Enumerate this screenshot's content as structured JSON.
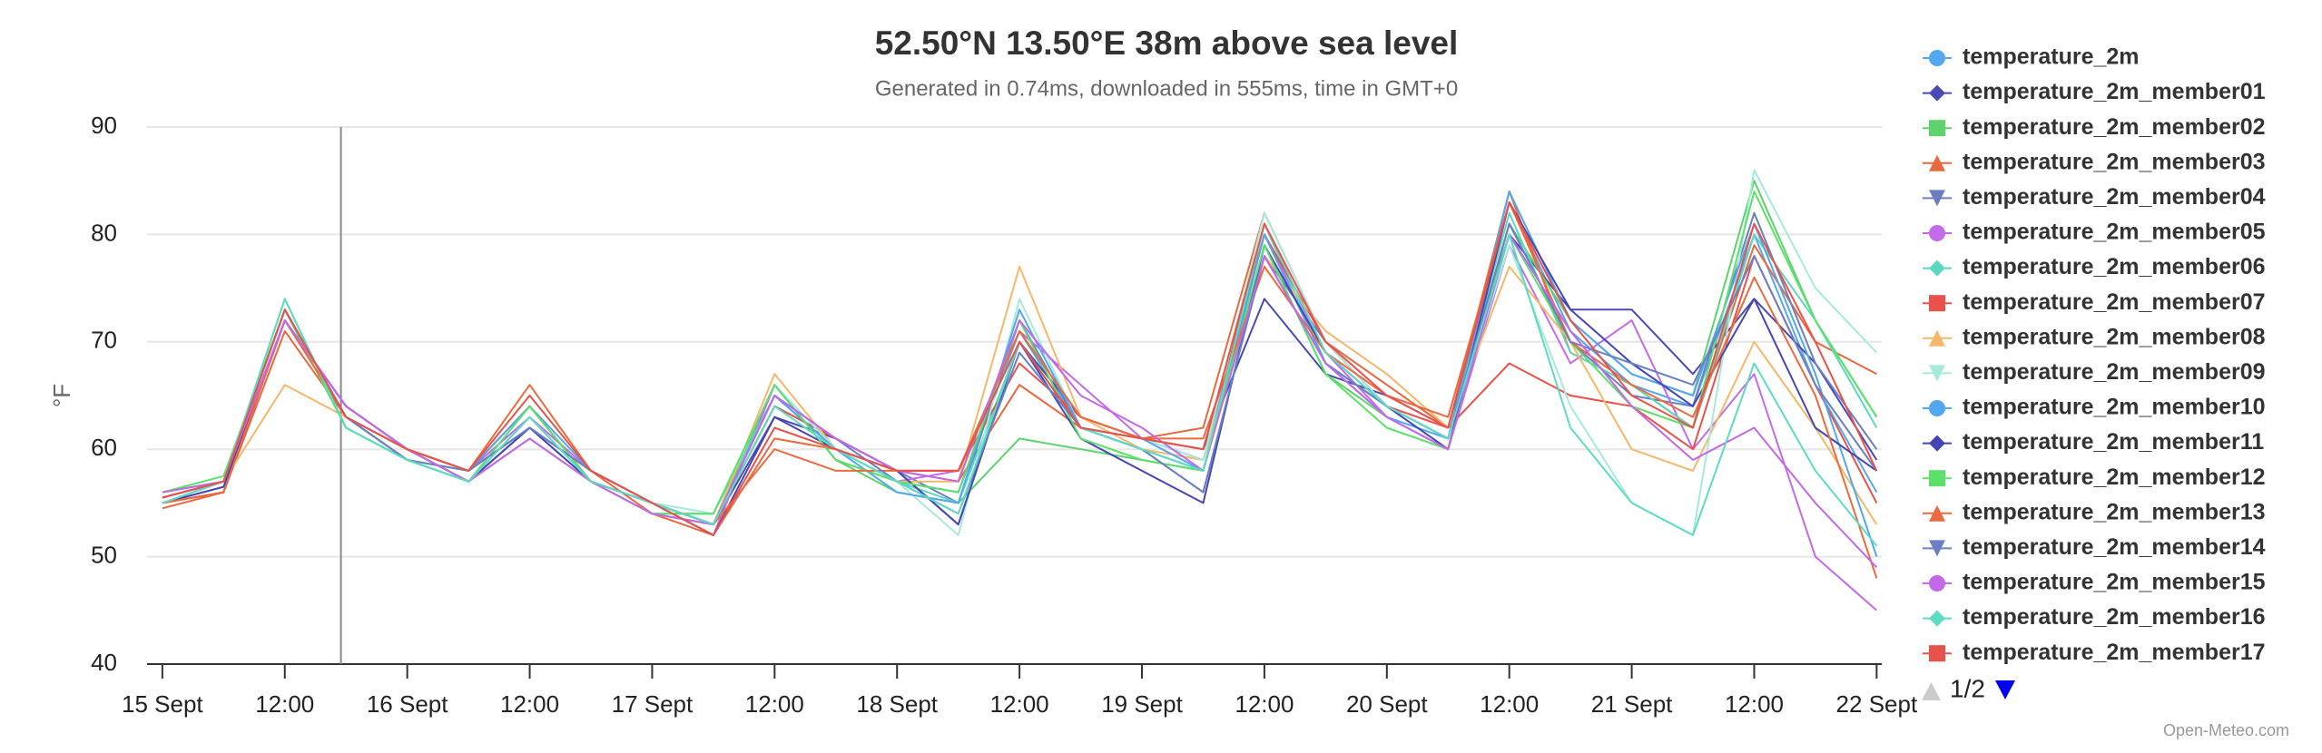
{
  "chart_data": {
    "type": "line",
    "title": "52.50°N 13.50°E 38m above sea level",
    "subtitle": "Generated in 0.74ms, downloaded in 555ms, time in GMT+0",
    "y_axis_label": "°F",
    "credit": "Open-Meteo.com",
    "legend_page": "1/2",
    "plot_line_x": 17.5,
    "grid": true,
    "xlim": [
      -1.5,
      168.5
    ],
    "ylim": [
      40,
      90
    ],
    "yticks": [
      40,
      50,
      60,
      70,
      80,
      90
    ],
    "xticks": [
      {
        "value": 0,
        "label": "15 Sept"
      },
      {
        "value": 12,
        "label": "12:00"
      },
      {
        "value": 24,
        "label": "16 Sept"
      },
      {
        "value": 36,
        "label": "12:00"
      },
      {
        "value": 48,
        "label": "17 Sept"
      },
      {
        "value": 60,
        "label": "12:00"
      },
      {
        "value": 72,
        "label": "18 Sept"
      },
      {
        "value": 84,
        "label": "12:00"
      },
      {
        "value": 96,
        "label": "19 Sept"
      },
      {
        "value": 108,
        "label": "12:00"
      },
      {
        "value": 120,
        "label": "20 Sept"
      },
      {
        "value": 132,
        "label": "12:00"
      },
      {
        "value": 144,
        "label": "21 Sept"
      },
      {
        "value": 156,
        "label": "12:00"
      },
      {
        "value": 168,
        "label": "22 Sept"
      }
    ],
    "x": [
      0,
      6,
      12,
      18,
      24,
      30,
      36,
      42,
      48,
      54,
      60,
      66,
      72,
      78,
      84,
      90,
      96,
      102,
      108,
      114,
      120,
      126,
      132,
      138,
      144,
      150,
      156,
      162,
      168
    ],
    "series": [
      {
        "name": "temperature_2m",
        "color": "#55a8ef",
        "values": [
          55.5,
          57,
          73,
          63,
          59,
          57,
          63,
          57,
          54,
          53,
          65,
          60,
          57,
          56,
          71,
          62,
          60,
          58,
          80,
          68,
          64,
          61,
          83,
          71,
          66,
          64,
          80,
          66,
          56
        ]
      },
      {
        "name": "temperature_2m_member01",
        "color": "#4a4ab3",
        "values": [
          55,
          56,
          72,
          64,
          60,
          58,
          62,
          58,
          55,
          53,
          63,
          61,
          58,
          53,
          70,
          63,
          61,
          60,
          74,
          67,
          65,
          62,
          80,
          73,
          73,
          67,
          74,
          68,
          59
        ]
      },
      {
        "name": "temperature_2m_member02",
        "color": "#5ed36b",
        "values": [
          56,
          57,
          74,
          62,
          59,
          58,
          64,
          57,
          54,
          53,
          66,
          59,
          56,
          55,
          61,
          60,
          59,
          58,
          79,
          67,
          63,
          60,
          81,
          72,
          67,
          65,
          85,
          72,
          63
        ]
      },
      {
        "name": "temperature_2m_member03",
        "color": "#e8683f",
        "values": [
          54.5,
          56,
          71,
          63,
          60,
          57,
          62,
          58,
          54,
          52,
          61,
          60,
          58,
          57,
          66,
          62,
          61,
          62,
          82,
          70,
          66,
          62,
          84,
          69,
          66,
          62,
          79,
          70,
          67
        ]
      },
      {
        "name": "temperature_2m_member04",
        "color": "#6b7fc0",
        "values": [
          55,
          57,
          73,
          63,
          59,
          57,
          61,
          57,
          55,
          53,
          64,
          61,
          58,
          55,
          72,
          62,
          60,
          56,
          78,
          70,
          64,
          61,
          81,
          70,
          65,
          64,
          82,
          68,
          60
        ]
      },
      {
        "name": "temperature_2m_member05",
        "color": "#c36be8",
        "values": [
          55.5,
          57,
          72,
          64,
          60,
          58,
          63,
          58,
          55,
          52,
          66,
          59,
          57,
          58,
          71,
          66,
          61,
          59,
          80,
          69,
          63,
          60,
          79,
          68,
          72,
          60,
          67,
          50,
          45
        ]
      },
      {
        "name": "temperature_2m_member06",
        "color": "#5dd8c0",
        "values": [
          56,
          57,
          73,
          62,
          59,
          57,
          62,
          57,
          54,
          54,
          65,
          60,
          57,
          55,
          70,
          62,
          60,
          58,
          81,
          68,
          64,
          61,
          82,
          69,
          66,
          62,
          80,
          72,
          62
        ]
      },
      {
        "name": "temperature_2m_member07",
        "color": "#e8524a",
        "values": [
          55,
          56,
          72,
          63,
          60,
          58,
          64,
          57,
          55,
          53,
          64,
          61,
          58,
          58,
          68,
          63,
          61,
          60,
          80,
          70,
          64,
          62,
          68,
          65,
          64,
          60,
          78,
          66,
          55
        ]
      },
      {
        "name": "temperature_2m_member08",
        "color": "#f5b76a",
        "values": [
          56,
          57,
          66,
          63,
          60,
          57,
          61,
          57,
          54,
          53,
          67,
          60,
          57,
          57,
          77,
          63,
          60,
          59,
          78,
          71,
          67,
          62,
          77,
          70,
          60,
          58,
          70,
          62,
          53
        ]
      },
      {
        "name": "temperature_2m_member09",
        "color": "#a6eadc",
        "values": [
          55.5,
          57,
          73,
          62,
          59,
          57,
          63,
          57,
          55,
          54,
          66,
          60,
          57,
          52,
          74,
          62,
          61,
          59,
          82,
          70,
          64,
          61,
          79,
          64,
          55,
          52,
          86,
          75,
          69
        ]
      },
      {
        "name": "temperature_2m_member10",
        "color": "#52a7f0",
        "values": [
          55.5,
          57,
          73,
          63,
          60,
          58,
          64,
          58,
          55,
          53,
          65,
          60,
          56,
          55,
          73,
          62,
          61,
          58,
          80,
          68,
          63,
          61,
          84,
          72,
          67,
          65,
          81,
          67,
          50
        ]
      },
      {
        "name": "temperature_2m_member11",
        "color": "#4545b5",
        "values": [
          55,
          56.5,
          72,
          64,
          60,
          57,
          62,
          57,
          55,
          52,
          63,
          60,
          58,
          53,
          70,
          61,
          58,
          55,
          79,
          69,
          64,
          60,
          83,
          73,
          68,
          64,
          74,
          62,
          58
        ]
      },
      {
        "name": "temperature_2m_member12",
        "color": "#5be06a",
        "values": [
          56,
          57.5,
          73,
          62,
          59,
          57,
          64,
          57,
          54,
          54,
          66,
          59,
          57,
          56,
          72,
          61,
          59,
          58,
          79,
          67,
          62,
          60,
          80,
          70,
          64,
          62,
          84,
          72,
          63
        ]
      },
      {
        "name": "temperature_2m_member13",
        "color": "#ec6a3d",
        "values": [
          55,
          56,
          72,
          63,
          60,
          58,
          66,
          58,
          55,
          53,
          60,
          58,
          58,
          58,
          71,
          63,
          61,
          61,
          77,
          69,
          65,
          63,
          83,
          70,
          66,
          63,
          76,
          65,
          48
        ]
      },
      {
        "name": "temperature_2m_member14",
        "color": "#6a80c4",
        "values": [
          55.5,
          57,
          73,
          63,
          59,
          58,
          62,
          58,
          55,
          53,
          65,
          61,
          57,
          54,
          69,
          62,
          60,
          56,
          78,
          68,
          64,
          61,
          81,
          70,
          68,
          66,
          78,
          66,
          58
        ]
      },
      {
        "name": "temperature_2m_member15",
        "color": "#c368e8",
        "values": [
          56,
          57,
          72,
          64,
          60,
          57,
          61,
          57,
          54,
          53,
          65,
          61,
          58,
          57,
          72,
          65,
          62,
          58,
          78,
          68,
          63,
          60,
          80,
          71,
          64,
          59,
          62,
          55,
          49
        ]
      },
      {
        "name": "temperature_2m_member16",
        "color": "#5fdac3",
        "values": [
          55,
          57,
          74,
          62,
          59,
          57,
          63,
          57,
          55,
          53,
          64,
          60,
          57,
          54,
          70,
          62,
          60,
          58,
          81,
          69,
          64,
          61,
          80,
          62,
          55,
          52,
          68,
          58,
          51
        ]
      },
      {
        "name": "temperature_2m_member17",
        "color": "#e8524a",
        "values": [
          55.5,
          57,
          73,
          63,
          60,
          58,
          65,
          58,
          55,
          52,
          62,
          60,
          58,
          58,
          70,
          62,
          61,
          60,
          81,
          70,
          65,
          62,
          83,
          72,
          65,
          62,
          81,
          70,
          58
        ]
      }
    ]
  }
}
